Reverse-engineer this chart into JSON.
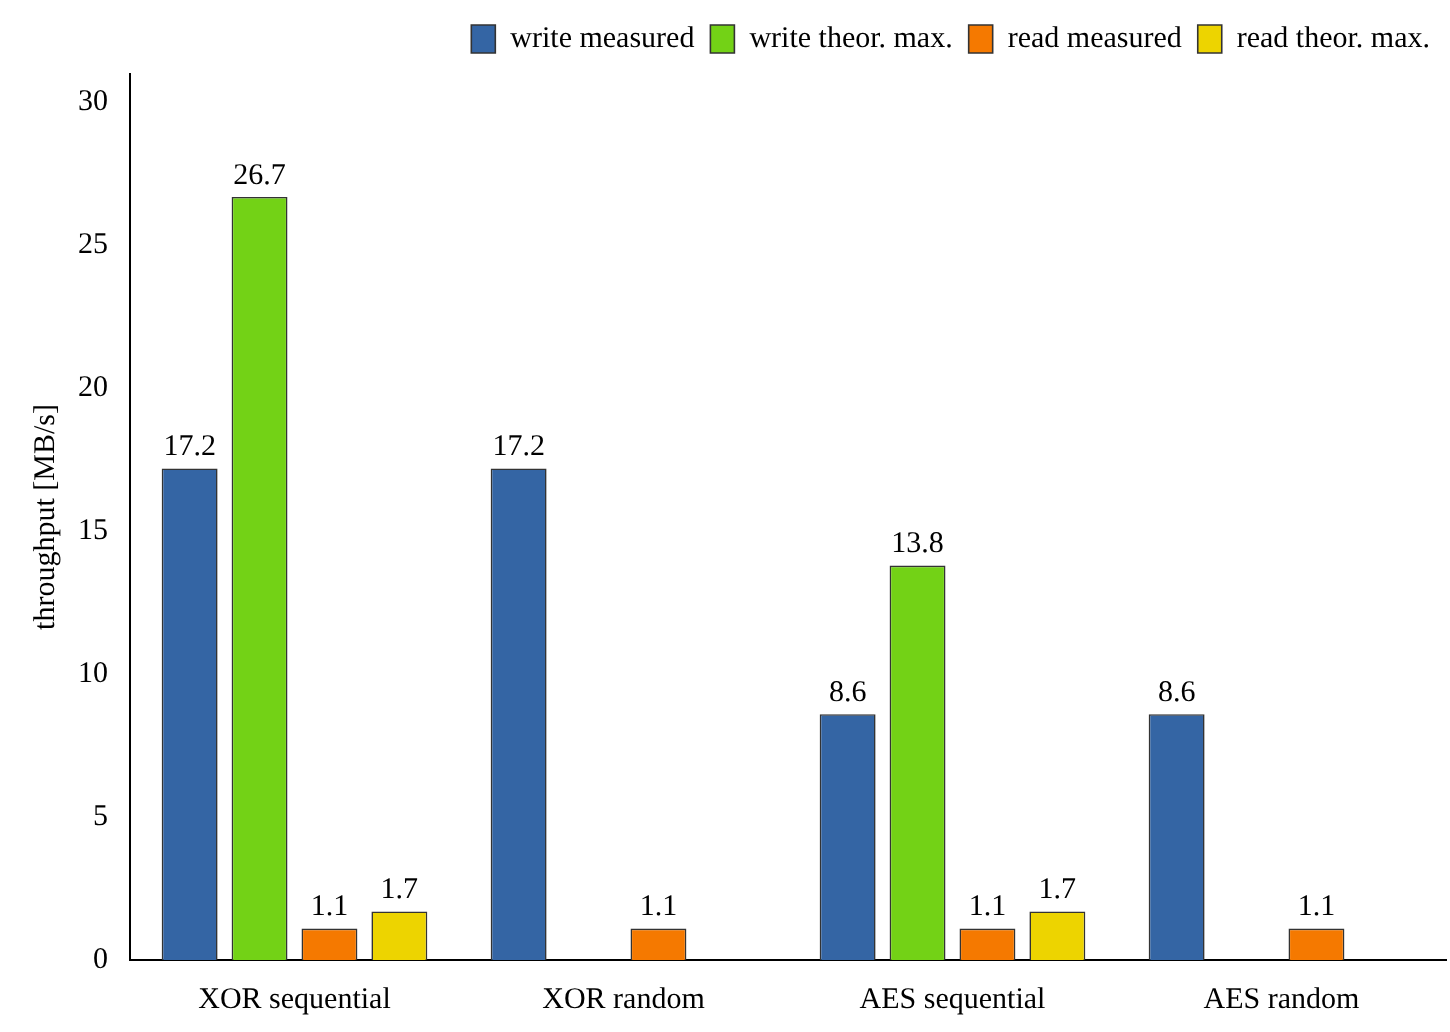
{
  "chart_data": {
    "type": "bar",
    "ylabel": "throughput [MB/s]",
    "categories": [
      "XOR sequential",
      "XOR random",
      "AES sequential",
      "AES random"
    ],
    "series": [
      {
        "name": "write measured",
        "color": "#3465a4",
        "values": [
          17.2,
          17.2,
          8.6,
          8.6
        ]
      },
      {
        "name": "write theor. max.",
        "color": "#73d216",
        "values": [
          26.7,
          null,
          13.8,
          null
        ]
      },
      {
        "name": "read measured",
        "color": "#f57900",
        "values": [
          1.1,
          1.1,
          1.1,
          1.1
        ]
      },
      {
        "name": "read theor. max.",
        "color": "#edd400",
        "values": [
          1.7,
          null,
          1.7,
          null
        ]
      }
    ],
    "ylim": [
      0,
      31
    ],
    "yticks": [
      0,
      5,
      10,
      15,
      20,
      25,
      30
    ],
    "grid": false,
    "legend": "top right",
    "data_labels": true
  }
}
